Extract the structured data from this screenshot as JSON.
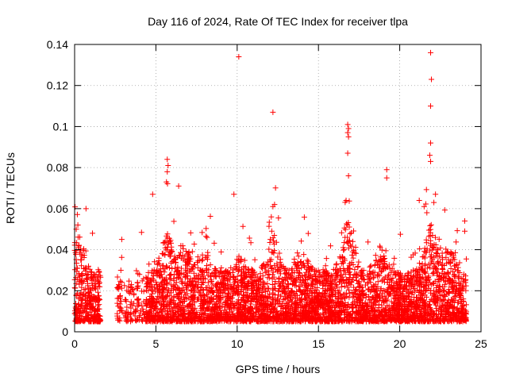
{
  "chart_data": {
    "type": "scatter",
    "title": "Day 116 of 2024, Rate Of TEC Index for receiver tlpa",
    "xlabel": "GPS time / hours",
    "ylabel": "ROTI / TECUs",
    "xlim": [
      0,
      25
    ],
    "ylim": [
      0,
      0.14
    ],
    "x_ticks": [
      "0",
      "5",
      "10",
      "15",
      "20",
      "25"
    ],
    "y_ticks": [
      "0",
      "0.02",
      "0.04",
      "0.06",
      "0.08",
      "0.1",
      "0.12",
      "0.14"
    ],
    "x_tick_values": [
      0,
      5,
      10,
      15,
      20,
      25
    ],
    "y_tick_values": [
      0,
      0.02,
      0.04,
      0.06,
      0.08,
      0.1,
      0.12,
      0.14
    ],
    "grid": true,
    "marker": "+",
    "marker_color": "#ff0000",
    "series_color": "#ff0000",
    "data_coverage": {
      "segments_hours": [
        [
          0,
          1.6
        ],
        [
          2.6,
          24.1
        ]
      ],
      "typical_roti_range": [
        0.005,
        0.03
      ]
    },
    "points": [
      {
        "x": 10.1,
        "y": 0.134
      },
      {
        "x": 21.9,
        "y": 0.136
      },
      {
        "x": 21.95,
        "y": 0.123
      },
      {
        "x": 21.9,
        "y": 0.11
      },
      {
        "x": 12.2,
        "y": 0.107
      },
      {
        "x": 16.8,
        "y": 0.101
      },
      {
        "x": 16.85,
        "y": 0.099
      },
      {
        "x": 16.8,
        "y": 0.097
      },
      {
        "x": 16.85,
        "y": 0.095
      },
      {
        "x": 16.8,
        "y": 0.087
      },
      {
        "x": 21.9,
        "y": 0.092
      },
      {
        "x": 21.85,
        "y": 0.086
      },
      {
        "x": 21.9,
        "y": 0.083
      },
      {
        "x": 19.2,
        "y": 0.079
      },
      {
        "x": 19.2,
        "y": 0.075
      },
      {
        "x": 5.7,
        "y": 0.084
      },
      {
        "x": 5.75,
        "y": 0.081
      },
      {
        "x": 5.7,
        "y": 0.078
      },
      {
        "x": 5.65,
        "y": 0.073
      },
      {
        "x": 16.85,
        "y": 0.076
      },
      {
        "x": 22.2,
        "y": 0.067
      },
      {
        "x": 22.1,
        "y": 0.063
      },
      {
        "x": 6.4,
        "y": 0.071
      },
      {
        "x": 4.8,
        "y": 0.067
      },
      {
        "x": 9.8,
        "y": 0.067
      },
      {
        "x": 12.3,
        "y": 0.062
      },
      {
        "x": 12.2,
        "y": 0.061
      },
      {
        "x": 12.1,
        "y": 0.056
      },
      {
        "x": 0.7,
        "y": 0.06
      },
      {
        "x": 0.2,
        "y": 0.052
      },
      {
        "x": 0.1,
        "y": 0.05
      },
      {
        "x": 16.7,
        "y": 0.064
      },
      {
        "x": 21.2,
        "y": 0.064
      },
      {
        "x": 24.0,
        "y": 0.054
      },
      {
        "x": 24.0,
        "y": 0.049
      },
      {
        "x": 2.9,
        "y": 0.045
      },
      {
        "x": 1.1,
        "y": 0.048
      }
    ]
  }
}
